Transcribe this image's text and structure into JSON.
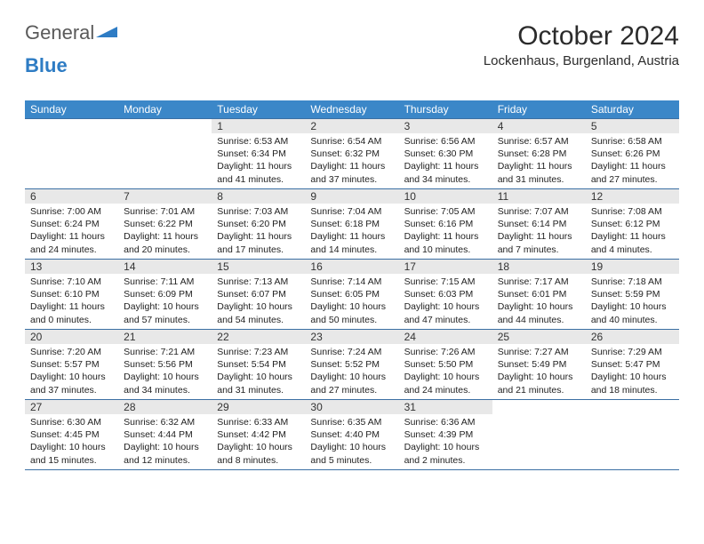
{
  "logo": {
    "part1": "General",
    "part2": "Blue"
  },
  "title": "October 2024",
  "location": "Lockenhaus, Burgenland, Austria",
  "colors": {
    "header_bg": "#3b87c8",
    "header_text": "#ffffff",
    "divider": "#3b6fa3",
    "daynum_bg": "#e8e8e8",
    "logo_gray": "#5a5a5a",
    "logo_blue": "#2e7cc4"
  },
  "day_names": [
    "Sunday",
    "Monday",
    "Tuesday",
    "Wednesday",
    "Thursday",
    "Friday",
    "Saturday"
  ],
  "weeks": [
    [
      {
        "empty": true
      },
      {
        "empty": true
      },
      {
        "n": "1",
        "sunrise": "6:53 AM",
        "sunset": "6:34 PM",
        "daylight": "11 hours and 41 minutes."
      },
      {
        "n": "2",
        "sunrise": "6:54 AM",
        "sunset": "6:32 PM",
        "daylight": "11 hours and 37 minutes."
      },
      {
        "n": "3",
        "sunrise": "6:56 AM",
        "sunset": "6:30 PM",
        "daylight": "11 hours and 34 minutes."
      },
      {
        "n": "4",
        "sunrise": "6:57 AM",
        "sunset": "6:28 PM",
        "daylight": "11 hours and 31 minutes."
      },
      {
        "n": "5",
        "sunrise": "6:58 AM",
        "sunset": "6:26 PM",
        "daylight": "11 hours and 27 minutes."
      }
    ],
    [
      {
        "n": "6",
        "sunrise": "7:00 AM",
        "sunset": "6:24 PM",
        "daylight": "11 hours and 24 minutes."
      },
      {
        "n": "7",
        "sunrise": "7:01 AM",
        "sunset": "6:22 PM",
        "daylight": "11 hours and 20 minutes."
      },
      {
        "n": "8",
        "sunrise": "7:03 AM",
        "sunset": "6:20 PM",
        "daylight": "11 hours and 17 minutes."
      },
      {
        "n": "9",
        "sunrise": "7:04 AM",
        "sunset": "6:18 PM",
        "daylight": "11 hours and 14 minutes."
      },
      {
        "n": "10",
        "sunrise": "7:05 AM",
        "sunset": "6:16 PM",
        "daylight": "11 hours and 10 minutes."
      },
      {
        "n": "11",
        "sunrise": "7:07 AM",
        "sunset": "6:14 PM",
        "daylight": "11 hours and 7 minutes."
      },
      {
        "n": "12",
        "sunrise": "7:08 AM",
        "sunset": "6:12 PM",
        "daylight": "11 hours and 4 minutes."
      }
    ],
    [
      {
        "n": "13",
        "sunrise": "7:10 AM",
        "sunset": "6:10 PM",
        "daylight": "11 hours and 0 minutes."
      },
      {
        "n": "14",
        "sunrise": "7:11 AM",
        "sunset": "6:09 PM",
        "daylight": "10 hours and 57 minutes."
      },
      {
        "n": "15",
        "sunrise": "7:13 AM",
        "sunset": "6:07 PM",
        "daylight": "10 hours and 54 minutes."
      },
      {
        "n": "16",
        "sunrise": "7:14 AM",
        "sunset": "6:05 PM",
        "daylight": "10 hours and 50 minutes."
      },
      {
        "n": "17",
        "sunrise": "7:15 AM",
        "sunset": "6:03 PM",
        "daylight": "10 hours and 47 minutes."
      },
      {
        "n": "18",
        "sunrise": "7:17 AM",
        "sunset": "6:01 PM",
        "daylight": "10 hours and 44 minutes."
      },
      {
        "n": "19",
        "sunrise": "7:18 AM",
        "sunset": "5:59 PM",
        "daylight": "10 hours and 40 minutes."
      }
    ],
    [
      {
        "n": "20",
        "sunrise": "7:20 AM",
        "sunset": "5:57 PM",
        "daylight": "10 hours and 37 minutes."
      },
      {
        "n": "21",
        "sunrise": "7:21 AM",
        "sunset": "5:56 PM",
        "daylight": "10 hours and 34 minutes."
      },
      {
        "n": "22",
        "sunrise": "7:23 AM",
        "sunset": "5:54 PM",
        "daylight": "10 hours and 31 minutes."
      },
      {
        "n": "23",
        "sunrise": "7:24 AM",
        "sunset": "5:52 PM",
        "daylight": "10 hours and 27 minutes."
      },
      {
        "n": "24",
        "sunrise": "7:26 AM",
        "sunset": "5:50 PM",
        "daylight": "10 hours and 24 minutes."
      },
      {
        "n": "25",
        "sunrise": "7:27 AM",
        "sunset": "5:49 PM",
        "daylight": "10 hours and 21 minutes."
      },
      {
        "n": "26",
        "sunrise": "7:29 AM",
        "sunset": "5:47 PM",
        "daylight": "10 hours and 18 minutes."
      }
    ],
    [
      {
        "n": "27",
        "sunrise": "6:30 AM",
        "sunset": "4:45 PM",
        "daylight": "10 hours and 15 minutes."
      },
      {
        "n": "28",
        "sunrise": "6:32 AM",
        "sunset": "4:44 PM",
        "daylight": "10 hours and 12 minutes."
      },
      {
        "n": "29",
        "sunrise": "6:33 AM",
        "sunset": "4:42 PM",
        "daylight": "10 hours and 8 minutes."
      },
      {
        "n": "30",
        "sunrise": "6:35 AM",
        "sunset": "4:40 PM",
        "daylight": "10 hours and 5 minutes."
      },
      {
        "n": "31",
        "sunrise": "6:36 AM",
        "sunset": "4:39 PM",
        "daylight": "10 hours and 2 minutes."
      },
      {
        "empty": true
      },
      {
        "empty": true
      }
    ]
  ],
  "labels": {
    "sunrise_prefix": "Sunrise: ",
    "sunset_prefix": "Sunset: ",
    "daylight_prefix": "Daylight: "
  }
}
